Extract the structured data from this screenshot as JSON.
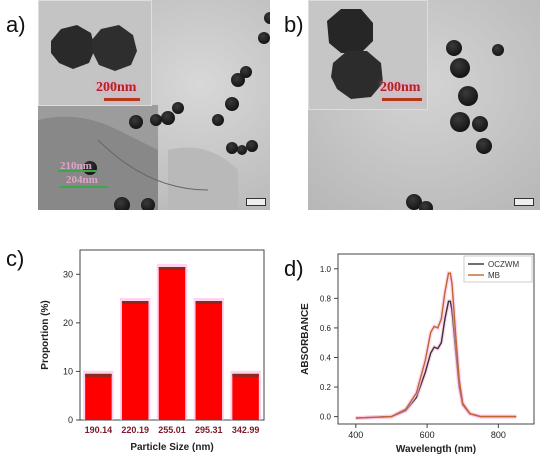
{
  "panels": {
    "a": "a)",
    "b": "b)",
    "c": "c)",
    "d": "d)"
  },
  "micrographs": {
    "a_scale_label": "200nm",
    "b_scale_label": "200nm",
    "a_overlay_label_1": "210nm",
    "a_overlay_label_2": "204nm"
  },
  "chart_data": [
    {
      "type": "bar",
      "categories": [
        "190.14",
        "220.19",
        "255.01",
        "295.31",
        "342.99"
      ],
      "values": [
        9.5,
        24.5,
        31.5,
        24.5,
        9.5
      ],
      "xlabel": "Particle Size (nm)",
      "ylabel": "Proportion (%)",
      "ylim": [
        0,
        35
      ],
      "yticks": [
        0,
        10,
        20,
        30
      ],
      "bar_color": "#ff0000",
      "bar_cap_color": "#8b2a1e",
      "grid": false
    },
    {
      "type": "line",
      "xlabel": "Wavelength (nm)",
      "ylabel": "ABSORBANCE",
      "xlim": [
        350,
        900
      ],
      "ylim": [
        -0.05,
        1.1
      ],
      "xticks": [
        400,
        600,
        800
      ],
      "yticks": [
        0.0,
        0.2,
        0.4,
        0.6,
        0.8,
        1.0
      ],
      "legend_position": "top-right",
      "series": [
        {
          "name": "OCZWM",
          "color": "#333333",
          "x": [
            400,
            450,
            500,
            540,
            570,
            595,
            610,
            620,
            630,
            640,
            650,
            660,
            665,
            670,
            680,
            690,
            700,
            720,
            750,
            800,
            850
          ],
          "y": [
            -0.01,
            -0.005,
            0.0,
            0.04,
            0.13,
            0.3,
            0.43,
            0.47,
            0.46,
            0.5,
            0.66,
            0.78,
            0.78,
            0.72,
            0.45,
            0.2,
            0.08,
            0.02,
            0.0,
            0.0,
            0.0
          ]
        },
        {
          "name": "MB",
          "color": "#c0652c",
          "x": [
            400,
            450,
            500,
            540,
            570,
            595,
            610,
            620,
            630,
            640,
            650,
            660,
            665,
            670,
            680,
            690,
            700,
            720,
            750,
            800,
            850
          ],
          "y": [
            -0.01,
            -0.005,
            0.0,
            0.05,
            0.16,
            0.38,
            0.57,
            0.61,
            0.6,
            0.66,
            0.84,
            0.97,
            0.97,
            0.9,
            0.56,
            0.25,
            0.09,
            0.02,
            0.0,
            0.0,
            0.0
          ]
        }
      ]
    }
  ]
}
